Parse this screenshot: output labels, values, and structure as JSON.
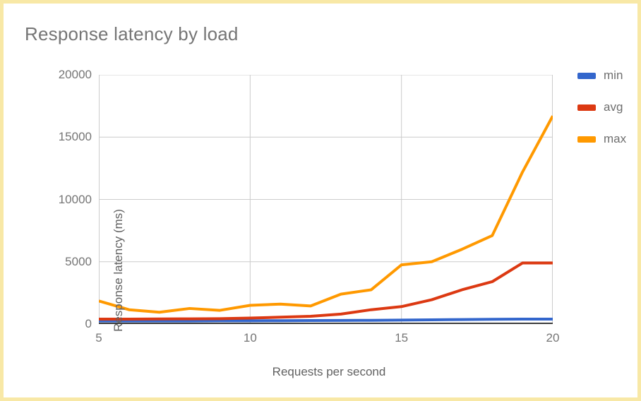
{
  "window": {
    "background_color": "#ffffff",
    "border_color": "#f8e8a6"
  },
  "chart": {
    "title": "Response latency by load",
    "x_axis_title": "Requests per second",
    "y_axis_title": "Response latency (ms)"
  },
  "chart_data": {
    "type": "line",
    "title": "Response latency by load",
    "xlabel": "Requests per second",
    "ylabel": "Response latency (ms)",
    "x": [
      5,
      6,
      7,
      8,
      9,
      10,
      11,
      12,
      13,
      14,
      15,
      16,
      17,
      18,
      19,
      20
    ],
    "series": [
      {
        "name": "min",
        "color": "#3366cc",
        "values": [
          250,
          250,
          250,
          250,
          260,
          260,
          270,
          280,
          290,
          300,
          320,
          340,
          360,
          380,
          400,
          400
        ]
      },
      {
        "name": "avg",
        "color": "#dc3912",
        "values": [
          400,
          400,
          410,
          420,
          430,
          480,
          550,
          620,
          800,
          1150,
          1400,
          1950,
          2750,
          3400,
          4900,
          4900
        ]
      },
      {
        "name": "max",
        "color": "#ff9900",
        "values": [
          1850,
          1150,
          950,
          1250,
          1100,
          1500,
          1600,
          1450,
          2400,
          2750,
          4750,
          5000,
          6000,
          7100,
          12200,
          16700
        ]
      }
    ],
    "xlim": [
      5,
      20
    ],
    "ylim": [
      0,
      20000
    ],
    "x_ticks": [
      5,
      10,
      15,
      20
    ],
    "y_ticks": [
      0,
      5000,
      10000,
      15000,
      20000
    ],
    "grid": true,
    "legend_position": "right",
    "gridline_color": "#cccccc",
    "axis_line_color": "#3c3c3c"
  }
}
